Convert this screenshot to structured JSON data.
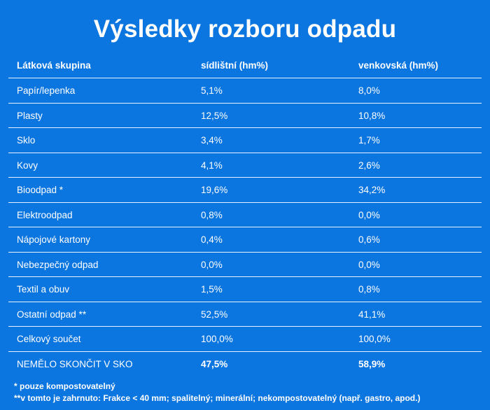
{
  "chart_data": {
    "type": "table",
    "title": "Výsledky rozboru odpadu",
    "columns": [
      "Látková skupina",
      "sídlištní (hm%)",
      "venkovská (hm%)"
    ],
    "rows": [
      [
        "Papír/lepenka",
        "5,1%",
        "8,0%"
      ],
      [
        "Plasty",
        "12,5%",
        "10,8%"
      ],
      [
        "Sklo",
        "3,4%",
        "1,7%"
      ],
      [
        "Kovy",
        "4,1%",
        "2,6%"
      ],
      [
        "Bioodpad *",
        "19,6%",
        "34,2%"
      ],
      [
        "Elektroodpad",
        "0,8%",
        "0,0%"
      ],
      [
        "Nápojové kartony",
        "0,4%",
        "0,6%"
      ],
      [
        "Nebezpečný odpad",
        "0,0%",
        "0,0%"
      ],
      [
        "Textil a obuv",
        "1,5%",
        "0,8%"
      ],
      [
        "Ostatní odpad **",
        "52,5%",
        "41,1%"
      ],
      [
        "Celkový součet",
        "100,0%",
        "100,0%"
      ],
      [
        "NEMĚLO SKONČIT V SKO",
        "47,5%",
        "58,9%"
      ]
    ],
    "notes": [
      "* pouze kompostovatelný",
      "**v tomto je zahrnuto: Frakce < 40 mm; spalitelný; minerální; nekompostovatelný (např. gastro, apod.)"
    ]
  }
}
